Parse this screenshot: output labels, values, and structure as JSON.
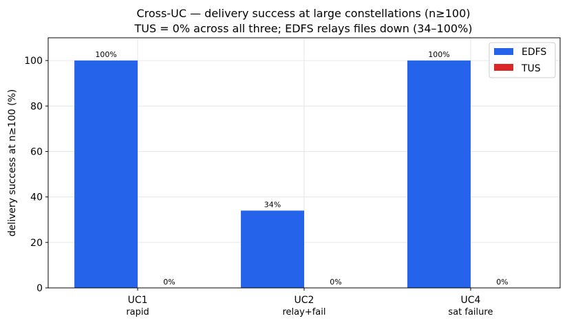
{
  "chart_data": {
    "type": "bar",
    "title": "Cross-UC — delivery success at large constellations (n≥100)",
    "subtitle": "TUS = 0% across all three; EDFS relays files down (34–100%)",
    "xlabel": "",
    "ylabel": "delivery success at n≥100 (%)",
    "ylim": [
      0,
      110
    ],
    "yticks": [
      0,
      20,
      40,
      60,
      80,
      100
    ],
    "grid": true,
    "legend_position": "top-right",
    "categories": [
      {
        "name": "UC1",
        "sub": "rapid"
      },
      {
        "name": "UC2",
        "sub": "relay+fail"
      },
      {
        "name": "UC4",
        "sub": "sat failure"
      }
    ],
    "series": [
      {
        "name": "EDFS",
        "color": "#2563eb",
        "values": [
          100,
          34,
          100
        ],
        "labels": [
          "100%",
          "34%",
          "100%"
        ]
      },
      {
        "name": "TUS",
        "color": "#dc2626",
        "values": [
          0,
          0,
          0
        ],
        "labels": [
          "0%",
          "0%",
          "0%"
        ]
      }
    ]
  }
}
